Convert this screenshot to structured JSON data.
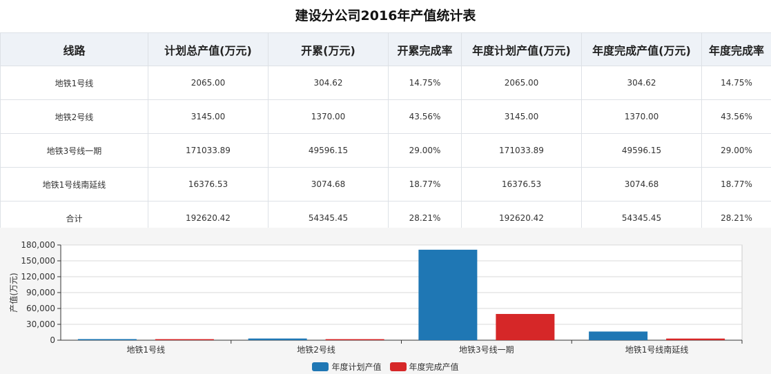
{
  "title": "建设分公司2016年产值统计表",
  "table": {
    "headers": [
      "线路",
      "计划总产值(万元)",
      "开累(万元)",
      "开累完成率",
      "年度计划产值(万元)",
      "年度完成产值(万元)",
      "年度完成率"
    ],
    "rows": [
      [
        "地铁1号线",
        "2065.00",
        "304.62",
        "14.75%",
        "2065.00",
        "304.62",
        "14.75%"
      ],
      [
        "地铁2号线",
        "3145.00",
        "1370.00",
        "43.56%",
        "3145.00",
        "1370.00",
        "43.56%"
      ],
      [
        "地铁3号线一期",
        "171033.89",
        "49596.15",
        "29.00%",
        "171033.89",
        "49596.15",
        "29.00%"
      ],
      [
        "地铁1号线南延线",
        "16376.53",
        "3074.68",
        "18.77%",
        "16376.53",
        "3074.68",
        "18.77%"
      ],
      [
        "合计",
        "192620.42",
        "54345.45",
        "28.21%",
        "192620.42",
        "54345.45",
        "28.21%"
      ]
    ]
  },
  "chart_data": {
    "type": "bar",
    "categories": [
      "地铁1号线",
      "地铁2号线",
      "地铁3号线一期",
      "地铁1号线南延线"
    ],
    "series": [
      {
        "name": "年度计划产值",
        "color": "#1f77b4",
        "values": [
          2065.0,
          3145.0,
          171033.89,
          16376.53
        ]
      },
      {
        "name": "年度完成产值",
        "color": "#d62728",
        "values": [
          304.62,
          1370.0,
          49596.15,
          3074.68
        ]
      }
    ],
    "ylabel": "产值(万元)",
    "ylim": [
      0,
      180000
    ],
    "yticks": [
      "0",
      "30,000",
      "60,000",
      "90,000",
      "120,000",
      "150,000",
      "180,000"
    ],
    "grid": true,
    "legend_position": "bottom"
  }
}
